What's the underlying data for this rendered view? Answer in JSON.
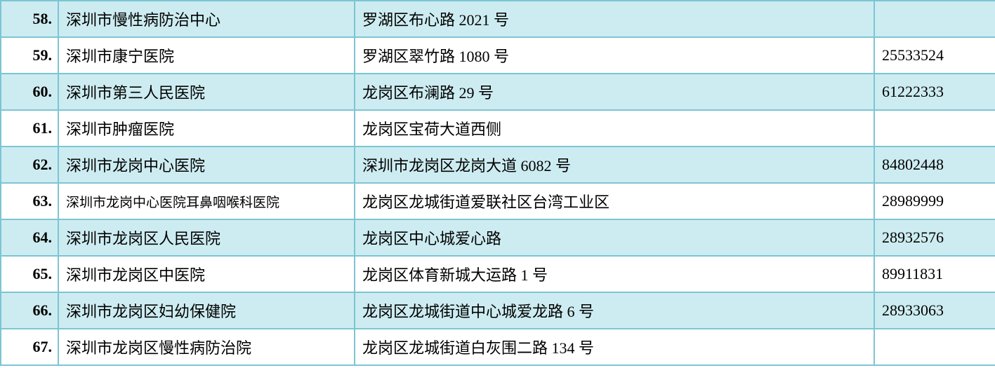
{
  "table": {
    "border_color": "#7cc5d4",
    "row_colors": {
      "even": "#cdecf1",
      "odd": "#ffffff"
    },
    "text_color": "#000000",
    "font_family": "SimSun",
    "font_size": 22,
    "index_font_weight": "bold",
    "column_widths": {
      "index": 82,
      "name": 422,
      "address": 740,
      "phone": 173
    },
    "rows": [
      {
        "idx": "58.",
        "name": "深圳市慢性病防治中心",
        "address": "罗湖区布心路 2021 号",
        "phone": ""
      },
      {
        "idx": "59.",
        "name": "深圳市康宁医院",
        "address": "罗湖区翠竹路 1080 号",
        "phone": "25533524"
      },
      {
        "idx": "60.",
        "name": "深圳市第三人民医院",
        "address": "龙岗区布澜路 29 号",
        "phone": "61222333"
      },
      {
        "idx": "61.",
        "name": "深圳市肿瘤医院",
        "address": "龙岗区宝荷大道西侧",
        "phone": ""
      },
      {
        "idx": "62.",
        "name": "深圳市龙岗中心医院",
        "address": "深圳市龙岗区龙岗大道 6082 号",
        "phone": "84802448"
      },
      {
        "idx": "63.",
        "name": "深圳市龙岗中心医院耳鼻咽喉科医院",
        "name_small": true,
        "address": "龙岗区龙城街道爱联社区台湾工业区",
        "phone": "28989999"
      },
      {
        "idx": "64.",
        "name": "深圳市龙岗区人民医院",
        "address": "龙岗区中心城爱心路",
        "phone": "28932576"
      },
      {
        "idx": "65.",
        "name": "深圳市龙岗区中医院",
        "address": "龙岗区体育新城大运路 1 号",
        "phone": "89911831"
      },
      {
        "idx": "66.",
        "name": "深圳市龙岗区妇幼保健院",
        "address": "龙岗区龙城街道中心城爱龙路 6 号",
        "phone": "28933063"
      },
      {
        "idx": "67.",
        "name": "深圳市龙岗区慢性病防治院",
        "address": "龙岗区龙城街道白灰围二路 134 号",
        "phone": ""
      }
    ]
  }
}
